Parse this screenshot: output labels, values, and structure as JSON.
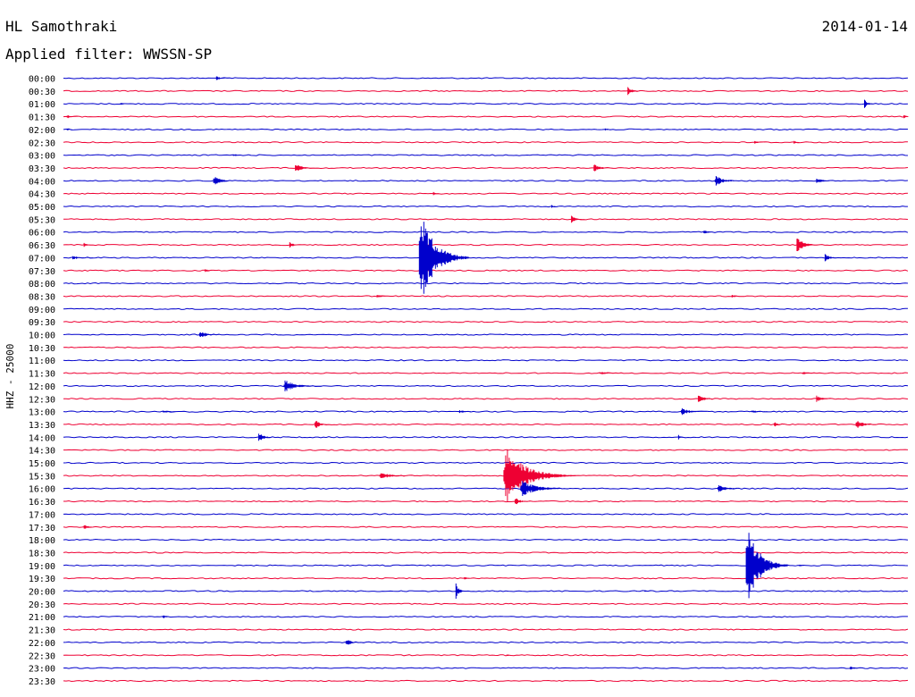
{
  "header": {
    "station": "HL Samothraki",
    "date": "2014-01-14",
    "filter": "Applied filter: WWSSN-SP"
  },
  "colors": {
    "blue": "#0000cc",
    "red": "#ee0033"
  },
  "chart_data": {
    "type": "line",
    "title": "HL Samothraki",
    "ylabel": "HHZ - 25000",
    "rows": [
      "00:00",
      "00:30",
      "01:00",
      "01:30",
      "02:00",
      "02:30",
      "03:00",
      "03:30",
      "04:00",
      "04:30",
      "05:00",
      "05:30",
      "06:00",
      "06:30",
      "07:00",
      "07:30",
      "08:00",
      "08:30",
      "09:00",
      "09:30",
      "10:00",
      "10:30",
      "11:00",
      "11:30",
      "12:00",
      "12:30",
      "13:00",
      "13:30",
      "14:00",
      "14:30",
      "15:00",
      "15:30",
      "16:00",
      "16:30",
      "17:00",
      "17:30",
      "18:00",
      "18:30",
      "19:00",
      "19:30",
      "20:00",
      "20:30",
      "21:00",
      "21:30",
      "22:00",
      "22:30",
      "23:00",
      "23:30"
    ],
    "row_colors": [
      "blue",
      "red"
    ],
    "x_range_minutes": [
      0,
      30
    ],
    "events": [
      {
        "row": "00:00",
        "t": 5.4,
        "amp": 3,
        "dur": 0.6
      },
      {
        "row": "00:30",
        "t": 20.0,
        "amp": 6,
        "dur": 0.6
      },
      {
        "row": "01:00",
        "t": 2.0,
        "amp": 2,
        "dur": 0.6
      },
      {
        "row": "01:00",
        "t": 28.4,
        "amp": 6,
        "dur": 0.5
      },
      {
        "row": "01:30",
        "t": 0.1,
        "amp": 3,
        "dur": 0.4
      },
      {
        "row": "01:30",
        "t": 29.8,
        "amp": 5,
        "dur": 0.3
      },
      {
        "row": "02:00",
        "t": 0.1,
        "amp": 3,
        "dur": 0.2
      },
      {
        "row": "02:00",
        "t": 19.2,
        "amp": 2,
        "dur": 0.3
      },
      {
        "row": "02:30",
        "t": 24.5,
        "amp": 2,
        "dur": 0.6
      },
      {
        "row": "02:30",
        "t": 25.9,
        "amp": 3,
        "dur": 0.3
      },
      {
        "row": "03:00",
        "t": 6.0,
        "amp": 2,
        "dur": 0.6
      },
      {
        "row": "03:30",
        "t": 8.2,
        "amp": 6,
        "dur": 0.8
      },
      {
        "row": "03:30",
        "t": 18.8,
        "amp": 6,
        "dur": 0.7
      },
      {
        "row": "04:00",
        "t": 5.3,
        "amp": 8,
        "dur": 0.8
      },
      {
        "row": "04:00",
        "t": 23.1,
        "amp": 7,
        "dur": 1.1
      },
      {
        "row": "04:00",
        "t": 26.7,
        "amp": 5,
        "dur": 0.7
      },
      {
        "row": "04:30",
        "t": 13.1,
        "amp": 4,
        "dur": 0.3
      },
      {
        "row": "05:00",
        "t": 17.3,
        "amp": 3,
        "dur": 0.3
      },
      {
        "row": "05:30",
        "t": 18.0,
        "amp": 6,
        "dur": 0.5
      },
      {
        "row": "06:00",
        "t": 22.7,
        "amp": 4,
        "dur": 0.5
      },
      {
        "row": "06:30",
        "t": 0.7,
        "amp": 3,
        "dur": 0.4
      },
      {
        "row": "06:30",
        "t": 8.0,
        "amp": 4,
        "dur": 0.5
      },
      {
        "row": "06:30",
        "t": 26.0,
        "amp": 12,
        "dur": 0.8
      },
      {
        "row": "07:00",
        "t": 0.3,
        "amp": 3,
        "dur": 0.8
      },
      {
        "row": "07:00",
        "t": 12.6,
        "amp": 64,
        "dur": 1.8
      },
      {
        "row": "07:00",
        "t": 27.0,
        "amp": 5,
        "dur": 0.6
      },
      {
        "row": "07:30",
        "t": 5.0,
        "amp": 3,
        "dur": 0.4
      },
      {
        "row": "08:30",
        "t": 11.1,
        "amp": 3,
        "dur": 0.6
      },
      {
        "row": "08:30",
        "t": 23.7,
        "amp": 3,
        "dur": 0.5
      },
      {
        "row": "10:00",
        "t": 4.8,
        "amp": 6,
        "dur": 0.8
      },
      {
        "row": "11:30",
        "t": 19.0,
        "amp": 2,
        "dur": 1.2
      },
      {
        "row": "11:30",
        "t": 26.2,
        "amp": 2,
        "dur": 1.0
      },
      {
        "row": "12:00",
        "t": 7.8,
        "amp": 8,
        "dur": 1.4
      },
      {
        "row": "12:30",
        "t": 22.5,
        "amp": 6,
        "dur": 0.7
      },
      {
        "row": "12:30",
        "t": 26.7,
        "amp": 5,
        "dur": 0.7
      },
      {
        "row": "13:00",
        "t": 3.5,
        "amp": 2,
        "dur": 1.0
      },
      {
        "row": "13:00",
        "t": 14.0,
        "amp": 2,
        "dur": 1.0
      },
      {
        "row": "13:00",
        "t": 21.9,
        "amp": 5,
        "dur": 1.0
      },
      {
        "row": "13:00",
        "t": 24.4,
        "amp": 2,
        "dur": 1.0
      },
      {
        "row": "13:30",
        "t": 8.9,
        "amp": 7,
        "dur": 0.6
      },
      {
        "row": "13:30",
        "t": 25.2,
        "amp": 4,
        "dur": 0.4
      },
      {
        "row": "13:30",
        "t": 28.1,
        "amp": 7,
        "dur": 0.8
      },
      {
        "row": "14:00",
        "t": 6.9,
        "amp": 7,
        "dur": 0.6
      },
      {
        "row": "14:00",
        "t": 21.8,
        "amp": 5,
        "dur": 0.3
      },
      {
        "row": "15:30",
        "t": 11.2,
        "amp": 5,
        "dur": 1.3
      },
      {
        "row": "15:30",
        "t": 15.6,
        "amp": 38,
        "dur": 2.6
      },
      {
        "row": "16:00",
        "t": 16.2,
        "amp": 12,
        "dur": 1.8
      },
      {
        "row": "16:00",
        "t": 23.2,
        "amp": 6,
        "dur": 1.0
      },
      {
        "row": "16:30",
        "t": 16.0,
        "amp": 6,
        "dur": 0.6
      },
      {
        "row": "17:30",
        "t": 0.7,
        "amp": 3,
        "dur": 0.6
      },
      {
        "row": "19:00",
        "t": 24.2,
        "amp": 58,
        "dur": 1.5
      },
      {
        "row": "19:00",
        "t": 26.1,
        "amp": 3,
        "dur": 0.3
      },
      {
        "row": "19:30",
        "t": 14.2,
        "amp": 3,
        "dur": 0.4
      },
      {
        "row": "20:00",
        "t": 13.9,
        "amp": 12,
        "dur": 0.4
      },
      {
        "row": "20:00",
        "t": 20.6,
        "amp": 2,
        "dur": 0.3
      },
      {
        "row": "21:00",
        "t": 3.5,
        "amp": 3,
        "dur": 0.4
      },
      {
        "row": "22:00",
        "t": 10.0,
        "amp": 5,
        "dur": 0.7
      },
      {
        "row": "22:30",
        "t": 15.7,
        "amp": 2,
        "dur": 0.3
      },
      {
        "row": "23:00",
        "t": 27.9,
        "amp": 3,
        "dur": 0.5
      }
    ]
  }
}
